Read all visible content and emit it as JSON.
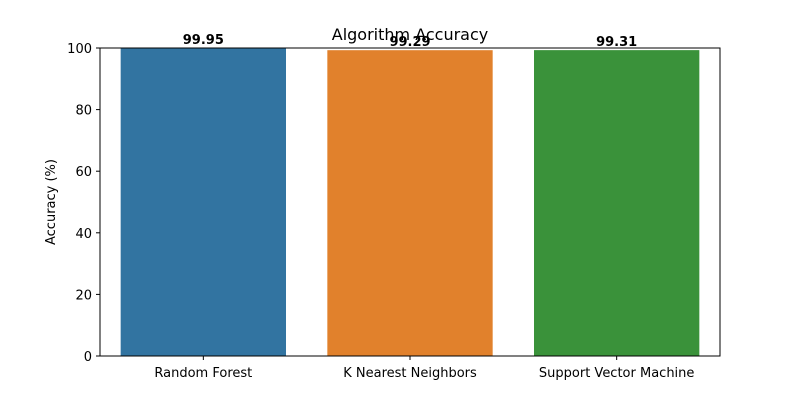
{
  "chart_data": {
    "type": "bar",
    "title": "Algorithm Accuracy",
    "xlabel": "",
    "ylabel": "Accuracy (%)",
    "categories": [
      "Random Forest",
      "K Nearest Neighbors",
      "Support Vector Machine"
    ],
    "values": [
      99.95,
      99.29,
      99.31
    ],
    "value_labels": [
      "99.95",
      "99.29",
      "99.31"
    ],
    "colors": [
      "#3274a1",
      "#e1812c",
      "#3a923a"
    ],
    "ylim": [
      0,
      100
    ],
    "yticks": [
      0,
      20,
      40,
      60,
      80,
      100
    ],
    "grid": false,
    "legend": "none"
  }
}
